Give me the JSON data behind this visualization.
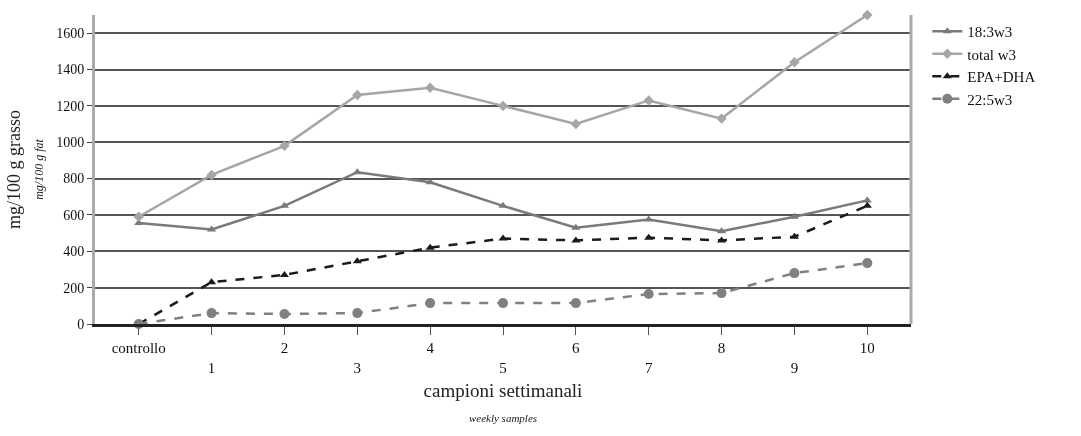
{
  "chart_data": {
    "type": "line",
    "xlabel": "campioni settimanali",
    "ylabel": "mg/100 g grasso",
    "annotations": [
      "mg/100 g fat",
      "weekly samples"
    ],
    "categories": [
      "controllo",
      "1",
      "2",
      "3",
      "4",
      "5",
      "6",
      "7",
      "8",
      "9",
      "10"
    ],
    "series": [
      {
        "name": "18:3w3",
        "color": "#7a7a7a",
        "marker": "triangle",
        "line_style": "solid",
        "values": [
          555,
          520,
          650,
          835,
          780,
          650,
          530,
          575,
          510,
          590,
          680
        ]
      },
      {
        "name": "total w3",
        "color": "#a6a6a6",
        "marker": "diamond",
        "line_style": "solid",
        "values": [
          590,
          820,
          980,
          1260,
          1300,
          1200,
          1100,
          1230,
          1130,
          1440,
          1700
        ]
      },
      {
        "name": "EPA+DHA",
        "color": "#1a1a1a",
        "marker": "triangle",
        "line_style": "dashed",
        "values": [
          0,
          230,
          270,
          345,
          420,
          470,
          460,
          475,
          460,
          480,
          650
        ]
      },
      {
        "name": "22:5w3",
        "color": "#808080",
        "marker": "circle",
        "line_style": "dashed",
        "values": [
          0,
          60,
          55,
          60,
          115,
          115,
          115,
          165,
          170,
          280,
          335
        ]
      }
    ],
    "ylim": [
      0,
      1700
    ],
    "yticks": [
      0,
      200,
      400,
      600,
      800,
      1000,
      1200,
      1400,
      1600
    ],
    "grid": "y",
    "legend": "right"
  }
}
